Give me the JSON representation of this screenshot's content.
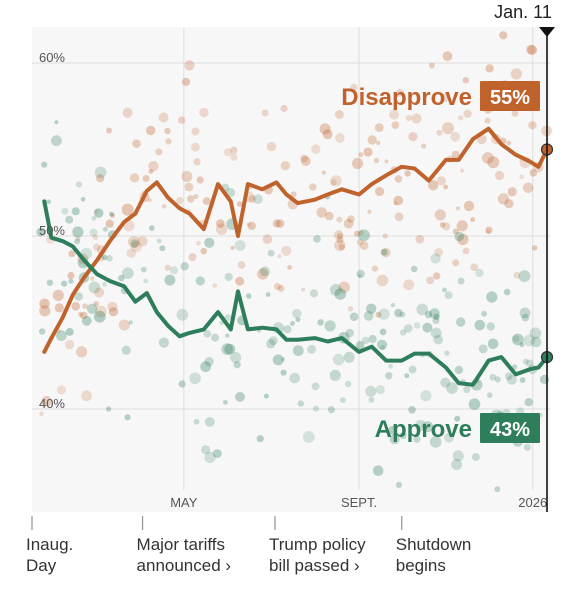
{
  "chart_data": {
    "type": "line",
    "title": "",
    "xlabel": "",
    "ylabel": "",
    "x_range": [
      "2025-01-20",
      "2026-01-11"
    ],
    "ylim": [
      34,
      63
    ],
    "y_ticks": [
      {
        "value": 60,
        "label": "60%"
      },
      {
        "value": 50,
        "label": "50%"
      },
      {
        "value": 40,
        "label": "40%"
      }
    ],
    "x_ticks": [
      {
        "date": "2025-05-01",
        "label": "MAY"
      },
      {
        "date": "2025-09-01",
        "label": "SEPT."
      },
      {
        "date": "2026-01-01",
        "label": "2026"
      }
    ],
    "current_date": {
      "date": "2026-01-11",
      "label": "Jan. 11"
    },
    "events": [
      {
        "date": "2025-01-20",
        "label": "Inaug.\nDay"
      },
      {
        "date": "2025-04-02",
        "label": "Major tariffs\nannounced ›"
      },
      {
        "date": "2025-07-04",
        "label": "Trump policy\nbill passed ›"
      },
      {
        "date": "2025-10-01",
        "label": "Shutdown\nbegins"
      }
    ],
    "grid": true,
    "series": [
      {
        "name": "Disapprove",
        "end_label": "55%",
        "color": "#c0622b",
        "x": [
          "2025-01-23",
          "2025-01-28",
          "2025-02-05",
          "2025-02-12",
          "2025-02-20",
          "2025-03-01",
          "2025-03-10",
          "2025-03-20",
          "2025-03-28",
          "2025-04-05",
          "2025-04-12",
          "2025-04-20",
          "2025-04-28",
          "2025-05-05",
          "2025-05-15",
          "2025-05-25",
          "2025-06-03",
          "2025-06-08",
          "2025-06-15",
          "2025-06-25",
          "2025-07-05",
          "2025-07-12",
          "2025-07-20",
          "2025-08-01",
          "2025-08-10",
          "2025-08-20",
          "2025-09-01",
          "2025-09-10",
          "2025-09-20",
          "2025-10-01",
          "2025-10-10",
          "2025-10-20",
          "2025-11-01",
          "2025-11-10",
          "2025-11-20",
          "2025-12-01",
          "2025-12-10",
          "2025-12-20",
          "2025-12-30",
          "2026-01-05",
          "2026-01-11"
        ],
        "values": [
          43.3,
          44.1,
          45.3,
          46.6,
          47.6,
          48.6,
          49.7,
          50.8,
          51.3,
          52.6,
          53.1,
          52.2,
          51.6,
          51.3,
          50.4,
          53.0,
          52.0,
          50.0,
          53.0,
          52.7,
          53.1,
          52.4,
          51.9,
          52.1,
          52.4,
          52.7,
          52.4,
          53.0,
          53.5,
          54.0,
          53.9,
          53.2,
          54.4,
          54.4,
          55.6,
          56.2,
          55.3,
          54.7,
          54.3,
          54.0,
          55.0
        ]
      },
      {
        "name": "Approve",
        "end_label": "43%",
        "color": "#2e7d5b",
        "x": [
          "2025-01-23",
          "2025-01-28",
          "2025-02-05",
          "2025-02-12",
          "2025-02-20",
          "2025-03-01",
          "2025-03-10",
          "2025-03-20",
          "2025-03-28",
          "2025-04-05",
          "2025-04-12",
          "2025-04-20",
          "2025-04-28",
          "2025-05-05",
          "2025-05-15",
          "2025-05-25",
          "2025-06-03",
          "2025-06-08",
          "2025-06-15",
          "2025-06-25",
          "2025-07-05",
          "2025-07-12",
          "2025-07-20",
          "2025-08-01",
          "2025-08-10",
          "2025-08-20",
          "2025-09-01",
          "2025-09-10",
          "2025-09-20",
          "2025-10-01",
          "2025-10-10",
          "2025-10-20",
          "2025-11-01",
          "2025-11-10",
          "2025-11-20",
          "2025-12-01",
          "2025-12-10",
          "2025-12-20",
          "2025-12-30",
          "2026-01-05",
          "2026-01-11"
        ],
        "values": [
          52.0,
          49.9,
          49.7,
          49.4,
          48.6,
          47.8,
          47.4,
          47.1,
          46.2,
          46.7,
          45.6,
          44.8,
          44.2,
          44.4,
          44.6,
          45.6,
          44.6,
          46.8,
          44.6,
          44.7,
          44.6,
          44.0,
          44.0,
          44.1,
          43.9,
          44.1,
          43.3,
          43.6,
          42.8,
          42.8,
          43.2,
          43.2,
          42.4,
          41.5,
          41.4,
          42.8,
          43.0,
          42.0,
          42.3,
          42.4,
          43.0
        ]
      }
    ]
  }
}
